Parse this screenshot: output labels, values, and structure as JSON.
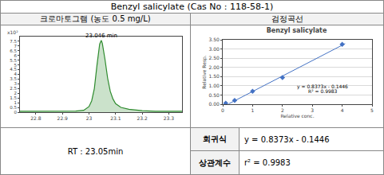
{
  "title": "Benzyl salicylate (Cas No : 118-58-1)",
  "columns": [
    "크로마토그램 (농도 0.5 mg/L)",
    "검정곡선"
  ],
  "chart_data": [
    {
      "type": "area",
      "ylabel": "x10²",
      "color": "#2e8b2e",
      "x": [
        22.74,
        22.8,
        22.85,
        22.9,
        22.95,
        22.98,
        23.0,
        23.01,
        23.02,
        23.03,
        23.04,
        23.046,
        23.05,
        23.06,
        23.07,
        23.08,
        23.09,
        23.1,
        23.12,
        23.15,
        23.2,
        23.25,
        23.3,
        23.35
      ],
      "values": [
        0.1,
        0.1,
        0.1,
        0.1,
        0.12,
        0.2,
        0.6,
        1.2,
        2.5,
        5.0,
        7.2,
        7.6,
        7.3,
        5.6,
        3.6,
        2.2,
        1.4,
        0.9,
        0.5,
        0.3,
        0.15,
        0.1,
        0.1,
        0.1
      ],
      "xlim": [
        22.74,
        23.35
      ],
      "xticks": [
        22.8,
        22.9,
        23,
        23.1,
        23.2,
        23.3
      ],
      "ylim": [
        0,
        8
      ],
      "yticks": [
        0,
        0.5,
        1,
        1.5,
        2,
        2.5,
        3,
        3.5,
        4,
        4.5,
        5,
        5.5,
        6,
        6.5,
        7,
        7.5
      ],
      "annotations": [
        {
          "text": "23.046 min",
          "x": 23.046,
          "y": 7.6
        }
      ],
      "grid": false
    },
    {
      "type": "scatter",
      "title": "Benzyl salicylate",
      "xlabel": "Relative conc.",
      "ylabel": "Relative Resp.",
      "series": [
        {
          "type": "scatter",
          "marker": "diamond",
          "color": "#4472c4",
          "x": [
            0.1,
            0.4,
            1,
            2,
            4
          ],
          "values": [
            0.05,
            0.2,
            0.7,
            1.45,
            3.25
          ]
        },
        {
          "type": "line",
          "line_style": "solid",
          "color": "#4472c4",
          "x": [
            0.2,
            4.1
          ],
          "values": [
            0.02,
            3.29
          ]
        }
      ],
      "xlim": [
        0,
        5
      ],
      "xticks": [
        0,
        1,
        2,
        3,
        4,
        5
      ],
      "ylim": [
        0,
        3.5
      ],
      "yticks": [
        {
          "value": 0,
          "label": "0.00"
        },
        {
          "value": 0.5,
          "label": "0.50"
        },
        {
          "value": 1,
          "label": "1.00"
        },
        {
          "value": 1.5,
          "label": "1.50"
        },
        {
          "value": 2,
          "label": "2.00"
        },
        {
          "value": 2.5,
          "label": "2.50"
        },
        {
          "value": 3,
          "label": "3.00"
        },
        {
          "value": 3.5,
          "label": "3.50"
        }
      ],
      "annotations": [
        {
          "text": "y = 0.8373x - 0.1446",
          "x": 3.35,
          "y": 0.95
        },
        {
          "text": "R² = 0.9983",
          "x": 3.35,
          "y": 0.7
        }
      ],
      "grid": true
    }
  ],
  "retention_time": "RT : 23.05min",
  "rows": [
    [
      "회귀식",
      "y = 0.8373x - 0.1446"
    ],
    [
      "상관계수",
      "r² = 0.9983"
    ]
  ]
}
